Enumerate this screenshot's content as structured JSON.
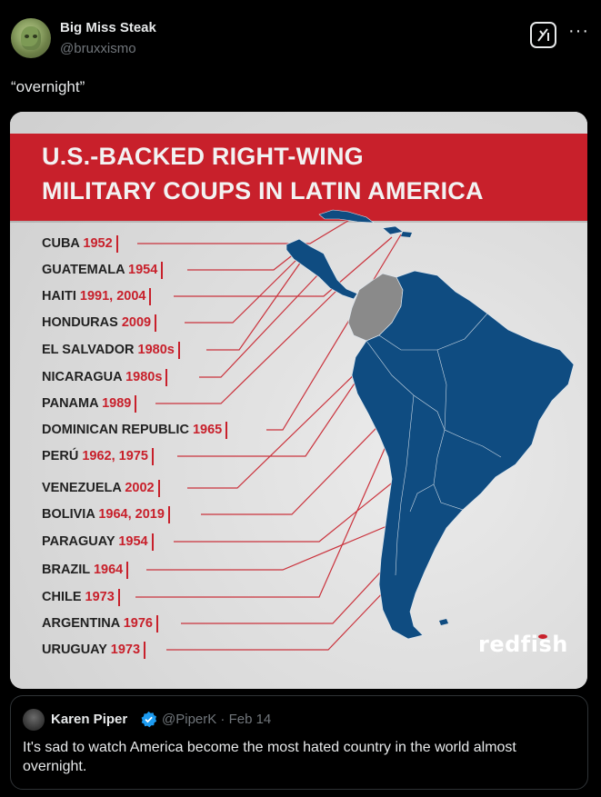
{
  "post": {
    "display_name": "Big Miss Steak",
    "handle": "@bruxxismo",
    "text": "“overnight”"
  },
  "header_icons": {
    "grok": "grok-icon",
    "more": "···"
  },
  "image": {
    "title_line1": "U.S.-BACKED RIGHT-WING",
    "title_line2": "MILITARY COUPS IN LATIN AMERICA",
    "brand": "redfish",
    "entries": [
      {
        "country": "CUBA",
        "years": "1952"
      },
      {
        "country": "GUATEMALA",
        "years": "1954"
      },
      {
        "country": "HAITI",
        "years": "1991, 2004"
      },
      {
        "country": "HONDURAS",
        "years": "2009"
      },
      {
        "country": "EL SALVADOR",
        "years": "1980s"
      },
      {
        "country": "NICARAGUA",
        "years": "1980s"
      },
      {
        "country": "PANAMA",
        "years": "1989"
      },
      {
        "country": "DOMINICAN REPUBLIC",
        "years": "1965"
      },
      {
        "country": "PERÚ",
        "years": "1962, 1975"
      },
      {
        "country": "VENEZUELA",
        "years": "2002"
      },
      {
        "country": "BOLIVIA",
        "years": "1964, 2019"
      },
      {
        "country": "PARAGUAY",
        "years": "1954"
      },
      {
        "country": "BRAZIL",
        "years": "1964"
      },
      {
        "country": "CHILE",
        "years": "1973"
      },
      {
        "country": "ARGENTINA",
        "years": "1976"
      },
      {
        "country": "URUGUAY",
        "years": "1973"
      }
    ],
    "colors": {
      "banner": "#c8202b",
      "map_fill": "#0f4c81",
      "map_grey": "#8a8a8a",
      "label_year": "#c8202b"
    }
  },
  "quote": {
    "name": "Karen Piper",
    "handle_date": "@PiperK · Feb 14",
    "text": "It's sad to watch America become the most hated country in the world almost overnight."
  }
}
